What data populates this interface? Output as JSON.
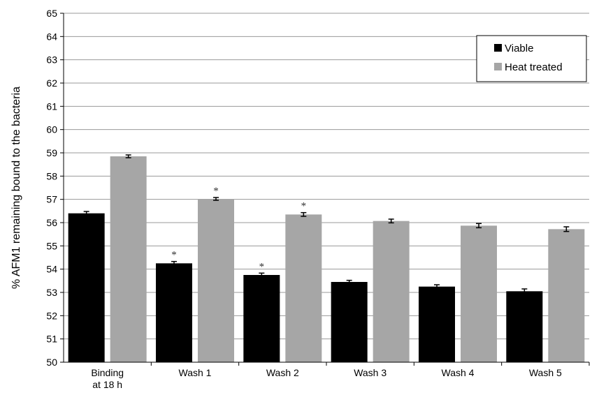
{
  "chart_data": {
    "type": "bar",
    "title": "",
    "xlabel": "",
    "ylabel": "% AFM1 remaining bound to the bacteria",
    "ylim": [
      50,
      65
    ],
    "yticks": [
      50,
      51,
      52,
      53,
      54,
      55,
      56,
      57,
      58,
      59,
      60,
      61,
      62,
      63,
      64,
      65
    ],
    "grid": true,
    "legend": "top-right",
    "categories": [
      [
        "Binding",
        "at 18 h"
      ],
      [
        "Wash 1"
      ],
      [
        "Wash 2"
      ],
      [
        "Wash 3"
      ],
      [
        "Wash 4"
      ],
      [
        "Wash 5"
      ]
    ],
    "series": [
      {
        "name": "Viable",
        "color": "#000000",
        "values": [
          56.4,
          54.25,
          53.75,
          53.45,
          53.25,
          53.05
        ],
        "errors": [
          0.08,
          0.08,
          0.08,
          0.07,
          0.08,
          0.1
        ],
        "significance": [
          "",
          "*",
          "*",
          "",
          "",
          ""
        ]
      },
      {
        "name": "Heat treated",
        "color": "#a6a6a6",
        "values": [
          58.85,
          57.02,
          56.35,
          56.07,
          55.87,
          55.72
        ],
        "errors": [
          0.06,
          0.06,
          0.08,
          0.08,
          0.09,
          0.1
        ],
        "significance": [
          "",
          "*",
          "*",
          "",
          "",
          ""
        ]
      }
    ]
  }
}
